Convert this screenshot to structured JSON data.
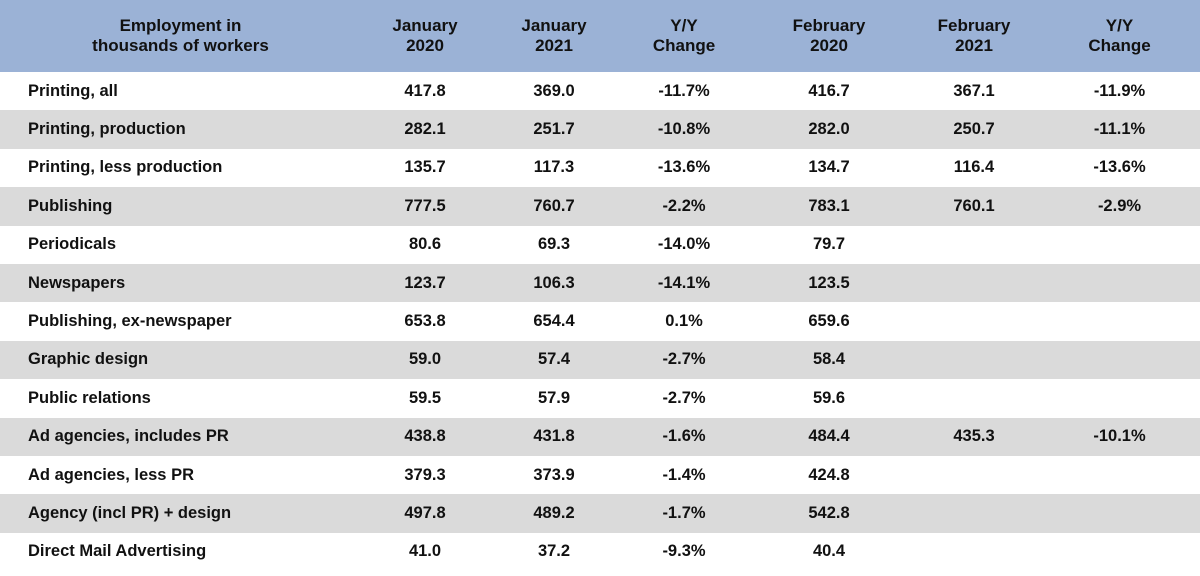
{
  "chart_data": {
    "type": "table",
    "columns": [
      "Employment in\nthousands of workers",
      "January\n2020",
      "January\n2021",
      "Y/Y\nChange",
      "February\n2020",
      "February\n2021",
      "Y/Y\nChange"
    ],
    "rows": [
      [
        "Printing, all",
        "417.8",
        "369.0",
        "-11.7%",
        "416.7",
        "367.1",
        "-11.9%"
      ],
      [
        "Printing, production",
        "282.1",
        "251.7",
        "-10.8%",
        "282.0",
        "250.7",
        "-11.1%"
      ],
      [
        "Printing, less production",
        "135.7",
        "117.3",
        "-13.6%",
        "134.7",
        "116.4",
        "-13.6%"
      ],
      [
        "Publishing",
        "777.5",
        "760.7",
        "-2.2%",
        "783.1",
        "760.1",
        "-2.9%"
      ],
      [
        "Periodicals",
        "80.6",
        "69.3",
        "-14.0%",
        "79.7",
        "",
        ""
      ],
      [
        "Newspapers",
        "123.7",
        "106.3",
        "-14.1%",
        "123.5",
        "",
        ""
      ],
      [
        "Publishing, ex-newspaper",
        "653.8",
        "654.4",
        "0.1%",
        "659.6",
        "",
        ""
      ],
      [
        "Graphic design",
        "59.0",
        "57.4",
        "-2.7%",
        "58.4",
        "",
        ""
      ],
      [
        "Public relations",
        "59.5",
        "57.9",
        "-2.7%",
        "59.6",
        "",
        ""
      ],
      [
        "Ad agencies, includes PR",
        "438.8",
        "431.8",
        "-1.6%",
        "484.4",
        "435.3",
        "-10.1%"
      ],
      [
        "Ad agencies, less PR",
        "379.3",
        "373.9",
        "-1.4%",
        "424.8",
        "",
        ""
      ],
      [
        "Agency (incl PR) + design",
        "497.8",
        "489.2",
        "-1.7%",
        "542.8",
        "",
        ""
      ],
      [
        "Direct Mail Advertising",
        "41.0",
        "37.2",
        "-9.3%",
        "40.4",
        "",
        ""
      ]
    ],
    "colors": {
      "header_background": "#9bb2d6",
      "stripe_background": "#dadada",
      "row_background": "#ffffff",
      "text": "#111111"
    }
  }
}
